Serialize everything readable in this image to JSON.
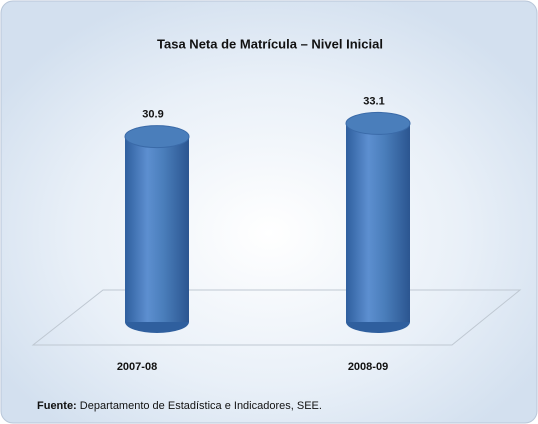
{
  "chart_data": {
    "type": "bar",
    "title": "Tasa Neta de Matrícula – Nivel Inicial",
    "categories": [
      "2007-08",
      "2008-09"
    ],
    "values": [
      30.9,
      33.1
    ],
    "color": "#4a7ebb",
    "source_label": "Fuente:",
    "source": "Departamento de Estadística e Indicadores, SEE."
  }
}
